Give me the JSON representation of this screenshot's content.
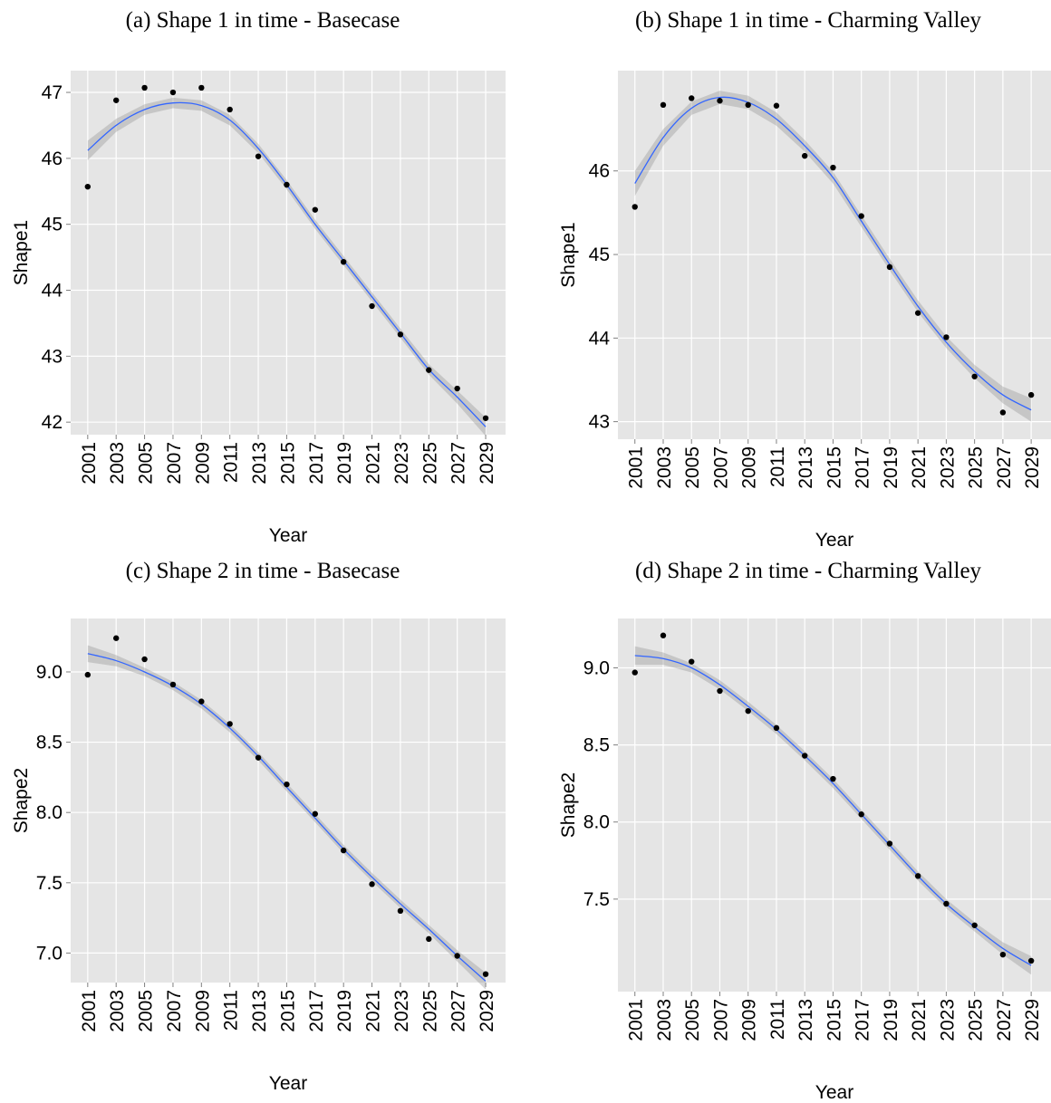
{
  "chart_data": [
    {
      "type": "scatter",
      "title": "(a) Shape 1 in time - Basecase",
      "xlabel": "Year",
      "ylabel": "Shape1",
      "x": [
        2001,
        2003,
        2005,
        2007,
        2009,
        2011,
        2013,
        2015,
        2017,
        2019,
        2021,
        2023,
        2025,
        2027,
        2029
      ],
      "values": [
        45.57,
        46.88,
        47.07,
        47.0,
        47.07,
        46.74,
        46.03,
        45.6,
        45.22,
        44.43,
        43.76,
        43.33,
        42.79,
        42.51,
        42.06
      ],
      "color": "#000000",
      "smooth": {
        "values": [
          46.12,
          46.5,
          46.74,
          46.84,
          46.8,
          46.58,
          46.15,
          45.6,
          45.0,
          44.45,
          43.9,
          43.35,
          42.8,
          42.38,
          41.93
        ],
        "lower": [
          45.97,
          46.4,
          46.66,
          46.76,
          46.72,
          46.5,
          46.08,
          45.53,
          44.93,
          44.38,
          43.83,
          43.28,
          42.72,
          42.28,
          41.79
        ],
        "upper": [
          46.27,
          46.6,
          46.82,
          46.92,
          46.88,
          46.66,
          46.22,
          45.67,
          45.07,
          44.52,
          43.97,
          43.42,
          42.88,
          42.48,
          42.07
        ],
        "color": "#3366ff",
        "band_color": "#999999"
      },
      "xlim": [
        1999.8,
        2030.4
      ],
      "ylim": [
        41.81,
        47.33
      ],
      "xticks": [
        2001,
        2003,
        2005,
        2007,
        2009,
        2011,
        2013,
        2015,
        2017,
        2019,
        2021,
        2023,
        2025,
        2027,
        2029
      ],
      "yticks": [
        42,
        43,
        44,
        45,
        46,
        47
      ],
      "grid": true
    },
    {
      "type": "scatter",
      "title": "(b) Shape 1 in time - Charming Valley",
      "xlabel": "Year",
      "ylabel": "Shape1",
      "x": [
        2001,
        2003,
        2005,
        2007,
        2009,
        2011,
        2013,
        2015,
        2017,
        2019,
        2021,
        2023,
        2025,
        2027,
        2029
      ],
      "values": [
        45.57,
        46.79,
        46.87,
        46.84,
        46.79,
        46.78,
        46.18,
        46.04,
        45.46,
        44.85,
        44.3,
        44.01,
        43.54,
        43.11,
        43.32
      ],
      "color": "#000000",
      "smooth": {
        "values": [
          45.85,
          46.4,
          46.75,
          46.88,
          46.82,
          46.62,
          46.3,
          45.92,
          45.4,
          44.88,
          44.38,
          43.95,
          43.6,
          43.32,
          43.14
        ],
        "lower": [
          45.7,
          46.3,
          46.67,
          46.8,
          46.74,
          46.54,
          46.23,
          45.85,
          45.33,
          44.81,
          44.31,
          43.88,
          43.52,
          43.22,
          43.0
        ],
        "upper": [
          46.0,
          46.5,
          46.83,
          46.96,
          46.9,
          46.7,
          46.37,
          45.99,
          45.47,
          44.95,
          44.45,
          44.02,
          43.68,
          43.42,
          43.28
        ],
        "color": "#3366ff",
        "band_color": "#999999"
      },
      "xlim": [
        1999.8,
        2030.4
      ],
      "ylim": [
        42.79,
        47.2
      ],
      "xticks": [
        2001,
        2003,
        2005,
        2007,
        2009,
        2011,
        2013,
        2015,
        2017,
        2019,
        2021,
        2023,
        2025,
        2027,
        2029
      ],
      "yticks": [
        43,
        44,
        45,
        46
      ],
      "grid": true
    },
    {
      "type": "scatter",
      "title": "(c) Shape 2 in time - Basecase",
      "xlabel": "Year",
      "ylabel": "Shape2",
      "x": [
        2001,
        2003,
        2005,
        2007,
        2009,
        2011,
        2013,
        2015,
        2017,
        2019,
        2021,
        2023,
        2025,
        2027,
        2029
      ],
      "values": [
        8.98,
        9.24,
        9.09,
        8.91,
        8.79,
        8.63,
        8.39,
        8.2,
        7.99,
        7.73,
        7.49,
        7.3,
        7.1,
        6.98,
        6.85
      ],
      "color": "#000000",
      "smooth": {
        "values": [
          9.13,
          9.08,
          9.0,
          8.9,
          8.77,
          8.6,
          8.4,
          8.18,
          7.96,
          7.74,
          7.54,
          7.35,
          7.17,
          6.98,
          6.8
        ],
        "lower": [
          9.07,
          9.04,
          8.97,
          8.87,
          8.74,
          8.57,
          8.37,
          8.15,
          7.93,
          7.71,
          7.51,
          7.32,
          7.14,
          6.94,
          6.74
        ],
        "upper": [
          9.19,
          9.12,
          9.03,
          8.93,
          8.8,
          8.63,
          8.43,
          8.21,
          7.99,
          7.77,
          7.57,
          7.38,
          7.2,
          7.02,
          6.86
        ],
        "color": "#3366ff",
        "band_color": "#999999"
      },
      "xlim": [
        1999.8,
        2030.4
      ],
      "ylim": [
        6.79,
        9.38
      ],
      "xticks": [
        2001,
        2003,
        2005,
        2007,
        2009,
        2011,
        2013,
        2015,
        2017,
        2019,
        2021,
        2023,
        2025,
        2027,
        2029
      ],
      "yticks": [
        {
          "value": 7,
          "label": "7.0"
        },
        7.5,
        {
          "value": 8,
          "label": "8.0"
        },
        8.5,
        {
          "value": 9,
          "label": "9.0"
        }
      ],
      "grid": true
    },
    {
      "type": "scatter",
      "title": "(d) Shape 2 in time - Charming Valley",
      "xlabel": "Year",
      "ylabel": "Shape2",
      "x": [
        2001,
        2003,
        2005,
        2007,
        2009,
        2011,
        2013,
        2015,
        2017,
        2019,
        2021,
        2023,
        2025,
        2027,
        2029
      ],
      "values": [
        8.97,
        9.21,
        9.04,
        8.85,
        8.72,
        8.61,
        8.43,
        8.28,
        8.05,
        7.86,
        7.65,
        7.47,
        7.33,
        7.14,
        7.1
      ],
      "color": "#000000",
      "smooth": {
        "values": [
          9.08,
          9.06,
          9.0,
          8.89,
          8.75,
          8.6,
          8.43,
          8.25,
          8.05,
          7.85,
          7.65,
          7.47,
          7.32,
          7.18,
          7.07
        ],
        "lower": [
          9.02,
          9.02,
          8.97,
          8.86,
          8.72,
          8.57,
          8.4,
          8.22,
          8.02,
          7.82,
          7.62,
          7.44,
          7.29,
          7.14,
          7.01
        ],
        "upper": [
          9.14,
          9.1,
          9.03,
          8.92,
          8.78,
          8.63,
          8.46,
          8.28,
          8.08,
          7.88,
          7.68,
          7.5,
          7.35,
          7.22,
          7.13
        ],
        "color": "#3366ff",
        "band_color": "#999999"
      },
      "xlim": [
        1999.8,
        2030.4
      ],
      "ylim": [
        6.9,
        9.32
      ],
      "xticks": [
        2001,
        2003,
        2005,
        2007,
        2009,
        2011,
        2013,
        2015,
        2017,
        2019,
        2021,
        2023,
        2025,
        2027,
        2029
      ],
      "yticks": [
        7.5,
        {
          "value": 8,
          "label": "8.0"
        },
        8.5,
        {
          "value": 9,
          "label": "9.0"
        }
      ],
      "grid": true
    }
  ]
}
